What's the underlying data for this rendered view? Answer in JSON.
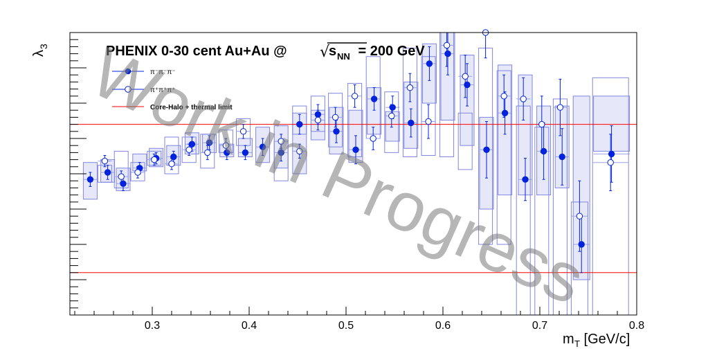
{
  "chart_data": {
    "type": "scatter",
    "title": "PHENIX 0-30 cent Au+Au @",
    "title_sqrt": "√",
    "title_s": "s",
    "title_nn": "NN",
    "title_energy": " = 200 GeV",
    "xlabel": "m",
    "xlabel_sub": "T",
    "xlabel_unit": " [GeV/c]",
    "ylabel": "λ",
    "ylabel_sub": "3",
    "xlim": [
      0.215,
      0.8
    ],
    "ylim": [
      -1.0,
      1.0
    ],
    "x_ticks": [
      "0.3",
      "0.4",
      "0.5",
      "0.6",
      "0.7",
      "0.8"
    ],
    "legend_position": "top-left",
    "watermark": "Work in Progress",
    "reference_lines": [
      {
        "name": "Core-Halo + thermal limit",
        "y": [
          0.35,
          -0.7
        ],
        "color": "#ff0000"
      }
    ],
    "series": [
      {
        "name": "π⁻π⁻π⁻",
        "marker": "filled-circle",
        "color": "#0022dd",
        "x": [
          0.236,
          0.254,
          0.27,
          0.287,
          0.304,
          0.322,
          0.341,
          0.359,
          0.377,
          0.396,
          0.414,
          0.433,
          0.452,
          0.471,
          0.49,
          0.51,
          0.529,
          0.548,
          0.567,
          0.586,
          0.605,
          0.625,
          0.645,
          0.664,
          0.685,
          0.704,
          0.723,
          0.743,
          0.774
        ],
        "y": [
          -0.04,
          0.01,
          -0.07,
          0.04,
          0.11,
          0.12,
          0.21,
          0.22,
          0.15,
          0.15,
          0.19,
          0.15,
          0.35,
          0.42,
          0.3,
          0.17,
          0.53,
          0.47,
          0.36,
          0.78,
          0.85,
          0.63,
          0.17,
          0.43,
          -0.04,
          0.16,
          0.12,
          -0.5,
          0.14
        ],
        "err": [
          0.05,
          0.05,
          0.05,
          0.04,
          0.04,
          0.04,
          0.05,
          0.05,
          0.05,
          0.05,
          0.06,
          0.06,
          0.07,
          0.07,
          0.08,
          0.1,
          0.08,
          0.08,
          0.1,
          0.12,
          0.15,
          0.15,
          0.2,
          0.15,
          0.15,
          0.2,
          0.2,
          0.2,
          0.2
        ],
        "sys_low": [
          -0.18,
          -0.06,
          -0.12,
          0.02,
          0.05,
          0.06,
          0.14,
          0.15,
          0.12,
          0.12,
          0.08,
          0.04,
          0.0,
          0.24,
          0.14,
          0.08,
          0.28,
          0.23,
          0.18,
          0.5,
          0.38,
          0.2,
          -0.25,
          -0.15,
          -0.15,
          -0.15,
          -0.1,
          -0.75,
          0.16
        ],
        "sys_high": [
          0.08,
          0.1,
          0.04,
          0.14,
          0.18,
          0.2,
          0.29,
          0.28,
          0.21,
          0.25,
          0.33,
          0.34,
          0.43,
          0.45,
          0.47,
          0.45,
          0.61,
          0.44,
          0.65,
          0.92,
          1.0,
          0.84,
          0.4,
          0.77,
          0.7,
          0.48,
          0.48,
          0.55,
          0.55
        ]
      },
      {
        "name": "π⁺π⁺π⁺",
        "marker": "open-circle",
        "color": "#0022dd",
        "x": [
          0.251,
          0.268,
          0.285,
          0.302,
          0.32,
          0.338,
          0.357,
          0.376,
          0.394,
          0.433,
          0.452,
          0.471,
          0.489,
          0.509,
          0.528,
          0.547,
          0.566,
          0.585,
          0.604,
          0.623,
          0.644,
          0.663,
          0.683,
          0.702,
          0.721,
          0.741,
          0.773
        ],
        "y": [
          0.09,
          -0.02,
          0.01,
          0.1,
          0.07,
          0.17,
          0.15,
          0.2,
          0.3,
          0.23,
          0.16,
          0.38,
          0.4,
          0.55,
          0.25,
          0.41,
          0.61,
          0.37,
          0.91,
          0.69,
          1.0,
          0.55,
          0.53,
          0.35,
          0.47,
          -0.3,
          0.08
        ],
        "err": [
          0.04,
          0.04,
          0.04,
          0.04,
          0.04,
          0.04,
          0.05,
          0.05,
          0.05,
          0.05,
          0.05,
          0.07,
          0.07,
          0.08,
          0.08,
          0.08,
          0.1,
          0.12,
          0.15,
          0.15,
          0.18,
          0.15,
          0.15,
          0.2,
          0.2,
          0.25,
          0.2
        ],
        "sys_low": [
          -0.06,
          -0.1,
          -0.05,
          0.06,
          0.0,
          0.08,
          0.04,
          0.15,
          0.2,
          -0.05,
          0.28,
          0.3,
          0.19,
          0.12,
          0.25,
          0.15,
          0.12,
          0.13,
          0.12,
          0.03,
          -0.5,
          -0.5,
          -1.0,
          -1.0,
          -1.0,
          -1.0,
          -1.0
        ],
        "sys_high": [
          0.06,
          0.16,
          0.08,
          0.16,
          0.26,
          0.26,
          0.28,
          0.31,
          0.39,
          0.23,
          0.48,
          0.55,
          0.57,
          0.64,
          0.83,
          0.58,
          0.89,
          0.83,
          1.0,
          0.43,
          0.89,
          0.73,
          0.48,
          0.33,
          0.53,
          -0.2,
          0.68
        ]
      }
    ]
  }
}
